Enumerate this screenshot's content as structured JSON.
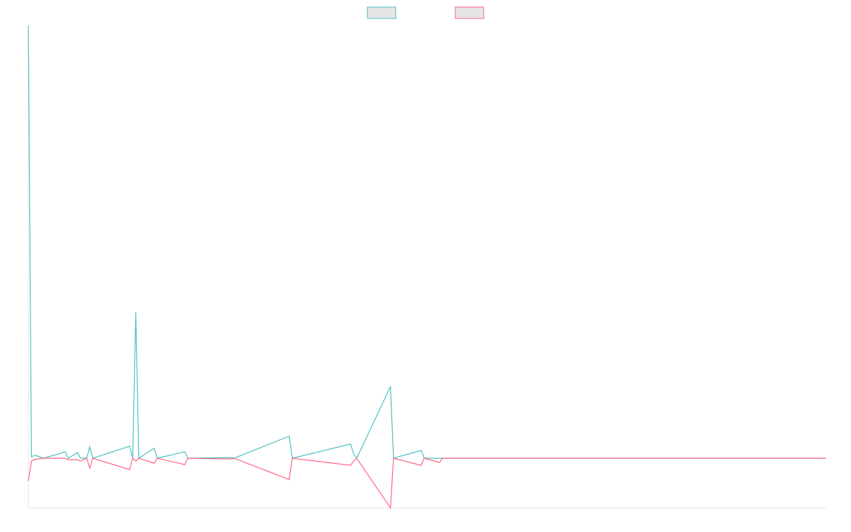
{
  "chart_data": {
    "type": "line",
    "x": [
      0,
      1,
      2,
      3,
      5,
      12,
      13,
      16,
      17,
      19,
      20,
      21,
      33,
      34,
      35,
      36,
      41,
      42,
      51,
      52,
      66,
      67,
      85,
      86,
      105,
      106,
      107,
      118,
      119,
      128,
      129,
      134,
      135,
      260
    ],
    "xlim": [
      0,
      260
    ],
    "ylim": [
      -70,
      611
    ],
    "legend": "top",
    "series": [
      {
        "color": "#4bc0c0",
        "values": [
          610,
          2,
          4,
          3,
          0,
          9,
          0,
          8,
          0,
          0,
          16,
          0,
          17,
          0,
          206,
          0,
          14,
          0,
          9,
          0,
          1,
          0,
          31,
          0,
          20,
          6,
          0,
          101,
          0,
          11,
          0,
          0,
          0,
          0
        ]
      },
      {
        "color": "#ff6384",
        "values": [
          -32,
          -4,
          -2,
          -1,
          0,
          0,
          -2,
          -2,
          -4,
          0,
          -14,
          0,
          -16,
          0,
          -4,
          0,
          -7,
          0,
          -9,
          0,
          -1,
          0,
          -30,
          0,
          -10,
          -4,
          0,
          -70,
          0,
          -10,
          0,
          -6,
          0,
          0
        ]
      }
    ]
  }
}
